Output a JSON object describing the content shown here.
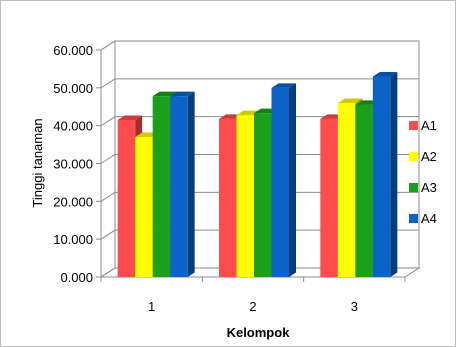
{
  "chart_data": {
    "type": "bar",
    "title": "",
    "xlabel": "Kelompok",
    "ylabel": "Tinggi tanaman",
    "categories": [
      "1",
      "2",
      "3"
    ],
    "ylim": [
      0,
      60
    ],
    "y_ticks": [
      "0.000",
      "10.000",
      "20.000",
      "30.000",
      "40.000",
      "50.000",
      "60.000"
    ],
    "y_tick_values": [
      0,
      10,
      20,
      30,
      40,
      50,
      60
    ],
    "grid": true,
    "legend_position": "right",
    "series": [
      {
        "name": "A1",
        "color": "#ff4b4b",
        "values": [
          41.5,
          41.8,
          41.8
        ]
      },
      {
        "name": "A2",
        "color": "#ffff00",
        "values": [
          37.0,
          42.8,
          46.0
        ]
      },
      {
        "name": "A3",
        "color": "#1aa01a",
        "values": [
          47.8,
          43.3,
          45.5
        ]
      },
      {
        "name": "A4",
        "color": "#0a64c8",
        "values": [
          47.8,
          50.0,
          53.0
        ]
      }
    ]
  }
}
